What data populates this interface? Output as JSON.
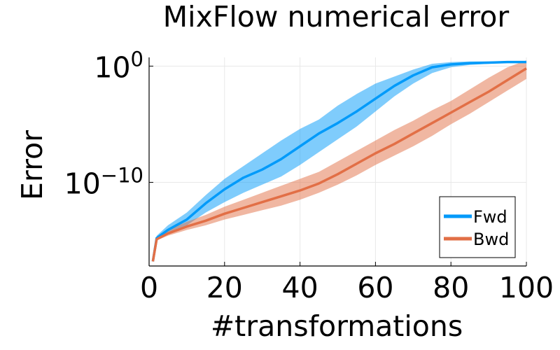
{
  "chart_data": {
    "type": "line",
    "title": "MixFlow numerical error",
    "xlabel": "#transformations",
    "ylabel": "Error",
    "xlim": [
      0,
      100
    ],
    "ylog10_range": [
      -17.2,
      0.75
    ],
    "y_scale": "log10",
    "x_ticks": [
      {
        "value": 0,
        "label": "0"
      },
      {
        "value": 20,
        "label": "20"
      },
      {
        "value": 40,
        "label": "40"
      },
      {
        "value": 60,
        "label": "60"
      },
      {
        "value": 80,
        "label": "80"
      },
      {
        "value": 100,
        "label": "100"
      }
    ],
    "y_ticks": [
      {
        "value_log10": 0,
        "base": "10",
        "exponent": "0"
      },
      {
        "value_log10": -10,
        "base": "10",
        "exponent": "−10"
      }
    ],
    "grid": true,
    "legend_position": "bottom-right",
    "series": [
      {
        "name": "Fwd",
        "color": "#009AFA",
        "band_color": "#009AFA",
        "x": [
          1,
          2,
          5,
          10,
          15,
          20,
          25,
          30,
          35,
          40,
          45,
          50,
          55,
          60,
          65,
          70,
          75,
          80,
          85,
          90,
          95,
          100
        ],
        "y_log10": [
          -16.8,
          -14.8,
          -14.1,
          -13.2,
          -11.8,
          -10.6,
          -9.6,
          -8.9,
          -8.0,
          -6.9,
          -5.8,
          -4.9,
          -3.9,
          -2.8,
          -1.7,
          -0.8,
          -0.1,
          0.15,
          0.25,
          0.3,
          0.35,
          0.35
        ],
        "lower_log10": [
          -16.9,
          -14.9,
          -14.3,
          -13.7,
          -12.6,
          -11.7,
          -10.9,
          -10.2,
          -9.5,
          -8.5,
          -7.4,
          -6.3,
          -5.2,
          -3.9,
          -2.6,
          -1.5,
          -0.6,
          -0.1,
          0.1,
          0.2,
          0.3,
          0.3
        ],
        "upper_log10": [
          -16.7,
          -14.6,
          -13.7,
          -12.6,
          -11.1,
          -9.7,
          -8.6,
          -7.5,
          -6.4,
          -5.4,
          -4.6,
          -3.4,
          -2.4,
          -1.5,
          -0.9,
          -0.3,
          0.2,
          0.35,
          0.4,
          0.4,
          0.4,
          0.4
        ]
      },
      {
        "name": "Bwd",
        "color": "#E26F46",
        "band_color": "#E26F46",
        "x": [
          1,
          2,
          5,
          10,
          15,
          20,
          25,
          30,
          35,
          40,
          45,
          50,
          55,
          60,
          65,
          70,
          75,
          80,
          85,
          90,
          95,
          100
        ],
        "y_log10": [
          -16.8,
          -14.9,
          -14.4,
          -13.8,
          -13.3,
          -12.7,
          -12.2,
          -11.7,
          -11.2,
          -10.7,
          -10.1,
          -9.3,
          -8.4,
          -7.5,
          -6.7,
          -5.8,
          -4.9,
          -4.0,
          -3.1,
          -2.2,
          -1.2,
          -0.2
        ],
        "lower_log10": [
          -16.9,
          -15.0,
          -14.6,
          -14.1,
          -13.7,
          -13.2,
          -12.8,
          -12.4,
          -12.0,
          -11.5,
          -10.9,
          -10.2,
          -9.4,
          -8.5,
          -7.7,
          -6.9,
          -6.0,
          -5.0,
          -4.1,
          -3.1,
          -2.1,
          -1.1
        ],
        "upper_log10": [
          -16.7,
          -14.7,
          -14.1,
          -13.4,
          -12.8,
          -12.1,
          -11.5,
          -10.9,
          -10.3,
          -9.7,
          -9.1,
          -8.2,
          -7.3,
          -6.4,
          -5.5,
          -4.7,
          -3.8,
          -3.0,
          -2.0,
          -1.0,
          -0.1,
          0.5
        ]
      }
    ]
  }
}
